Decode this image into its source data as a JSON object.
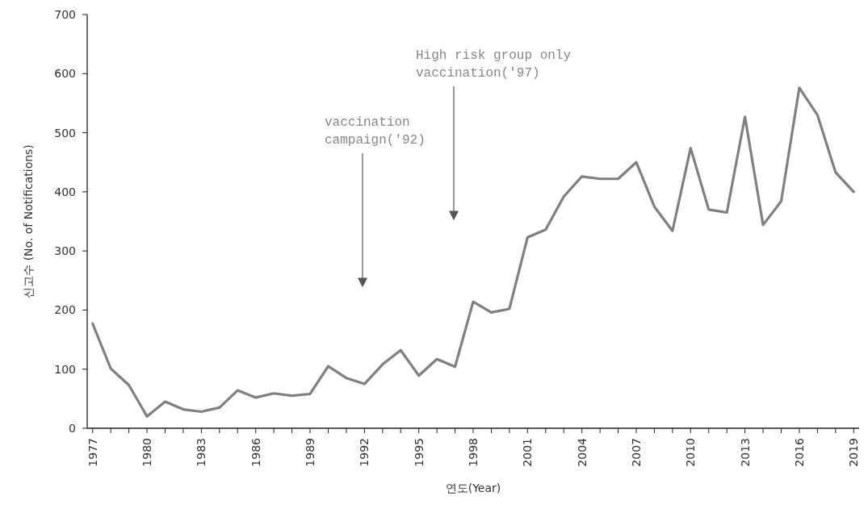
{
  "chart_data": {
    "type": "line",
    "xlabel": "연도(Year)",
    "ylabel": "신고수 (No. of Notifications)",
    "x": [
      1977,
      1978,
      1979,
      1980,
      1981,
      1982,
      1983,
      1984,
      1985,
      1986,
      1987,
      1988,
      1989,
      1990,
      1991,
      1992,
      1993,
      1994,
      1995,
      1996,
      1997,
      1998,
      1999,
      2000,
      2001,
      2002,
      2003,
      2004,
      2005,
      2006,
      2007,
      2008,
      2009,
      2010,
      2011,
      2012,
      2013,
      2014,
      2015,
      2016,
      2017,
      2018,
      2019
    ],
    "series": [
      {
        "color": "#808080",
        "values": [
          177,
          101,
          73,
          20,
          45,
          32,
          28,
          35,
          64,
          52,
          59,
          55,
          58,
          105,
          85,
          75,
          108,
          132,
          89,
          117,
          104,
          214,
          196,
          202,
          323,
          336,
          392,
          426,
          422,
          422,
          450,
          375,
          334,
          474,
          370,
          365,
          527,
          344,
          384,
          576,
          530,
          433,
          400
        ]
      }
    ],
    "xlim": [
      1976.7,
      2019.3
    ],
    "xticks": [
      1977,
      {
        "value": 1978,
        "label": null
      },
      {
        "value": 1979,
        "label": null
      },
      1980,
      {
        "value": 1981,
        "label": null
      },
      {
        "value": 1982,
        "label": null
      },
      1983,
      {
        "value": 1984,
        "label": null
      },
      {
        "value": 1985,
        "label": null
      },
      1986,
      {
        "value": 1987,
        "label": null
      },
      {
        "value": 1988,
        "label": null
      },
      1989,
      {
        "value": 1990,
        "label": null
      },
      {
        "value": 1991,
        "label": null
      },
      1992,
      {
        "value": 1993,
        "label": null
      },
      {
        "value": 1994,
        "label": null
      },
      1995,
      {
        "value": 1996,
        "label": null
      },
      {
        "value": 1997,
        "label": null
      },
      1998,
      {
        "value": 1999,
        "label": null
      },
      {
        "value": 2000,
        "label": null
      },
      2001,
      {
        "value": 2002,
        "label": null
      },
      {
        "value": 2003,
        "label": null
      },
      2004,
      {
        "value": 2005,
        "label": null
      },
      {
        "value": 2006,
        "label": null
      },
      2007,
      {
        "value": 2008,
        "label": null
      },
      {
        "value": 2009,
        "label": null
      },
      2010,
      {
        "value": 2011,
        "label": null
      },
      {
        "value": 2012,
        "label": null
      },
      2013,
      {
        "value": 2014,
        "label": null
      },
      {
        "value": 2015,
        "label": null
      },
      2016,
      {
        "value": 2017,
        "label": null
      },
      {
        "value": 2018,
        "label": null
      },
      2019
    ],
    "ylim": [
      0,
      700
    ],
    "yticks": [
      0,
      100,
      200,
      300,
      400,
      500,
      600,
      700
    ],
    "grid": false,
    "marker": "none",
    "line_style": "solid",
    "annotations": [
      "vaccination campaign('92)",
      "High risk group only vaccination('97)"
    ]
  }
}
